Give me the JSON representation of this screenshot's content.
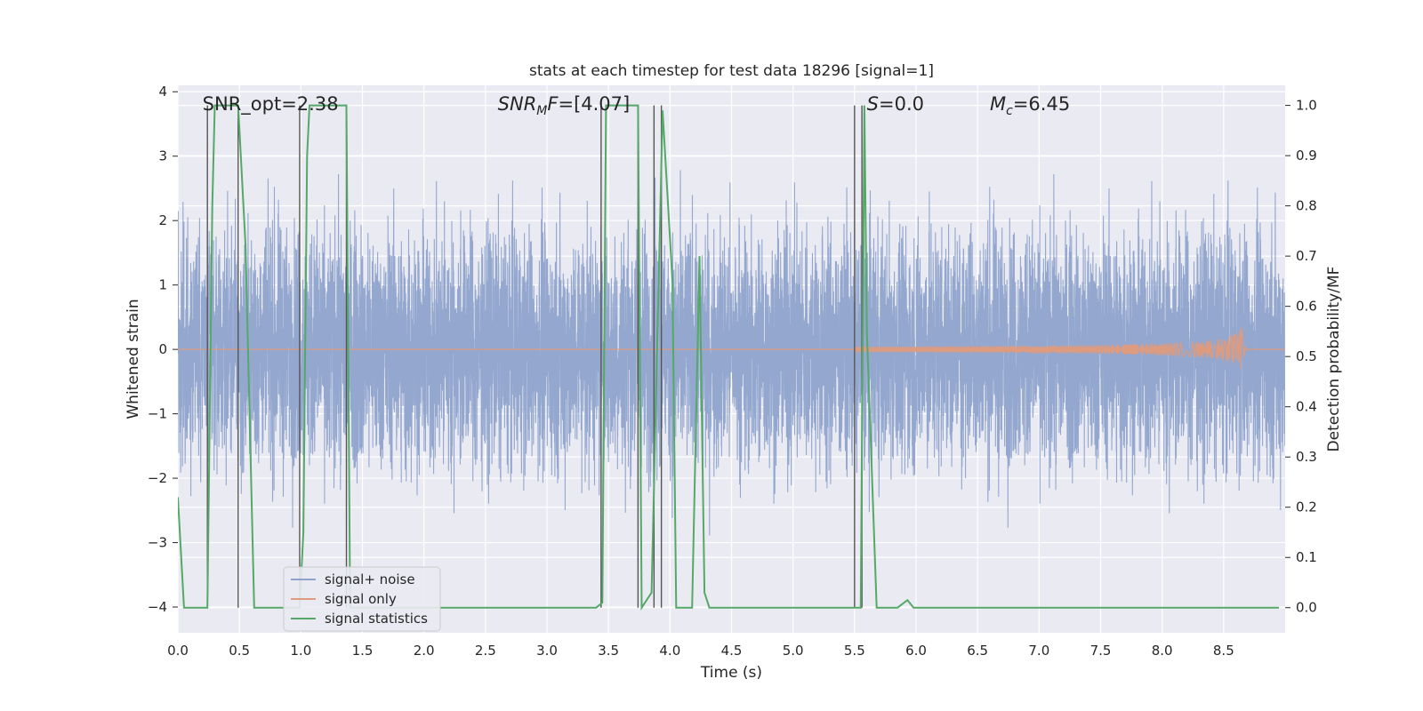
{
  "chart_data": {
    "type": "line",
    "title": "stats at each timestep for test data 18296 [signal=1]",
    "xlabel": "Time (s)",
    "ylabel": "Whitened strain",
    "ylabel_right": "Detection probability/MF",
    "xlim": [
      0.0,
      9.0
    ],
    "ylim": [
      -4.4,
      4.1
    ],
    "ylim_right": [
      -0.05,
      1.04
    ],
    "grid": true,
    "legend_position": "lower-left",
    "xticks": [
      0.0,
      0.5,
      1.0,
      1.5,
      2.0,
      2.5,
      3.0,
      3.5,
      4.0,
      4.5,
      5.0,
      5.5,
      6.0,
      6.5,
      7.0,
      7.5,
      8.0,
      8.5
    ],
    "xtick_labels": [
      "0.0",
      "0.5",
      "1.0",
      "1.5",
      "2.0",
      "2.5",
      "3.0",
      "3.5",
      "4.0",
      "4.5",
      "5.0",
      "5.5",
      "6.0",
      "6.5",
      "7.0",
      "7.5",
      "8.0",
      "8.5"
    ],
    "yticks_left": [
      4,
      3,
      2,
      1,
      0,
      -1,
      -2,
      -3,
      -4
    ],
    "ytick_labels_left": [
      "4",
      "3",
      "2",
      "1",
      "0",
      "−1",
      "−2",
      "−3",
      "−4"
    ],
    "yticks_right": [
      1.0,
      0.9,
      0.8,
      0.7,
      0.6,
      0.5,
      0.4,
      0.3,
      0.2,
      0.1,
      0.0
    ],
    "ytick_labels_right": [
      "1.0",
      "0.9",
      "0.8",
      "0.7",
      "0.6",
      "0.5",
      "0.4",
      "0.3",
      "0.2",
      "0.1",
      "0.0"
    ],
    "annotations": [
      {
        "name": "snr-opt",
        "text": "SNR_opt=2.38",
        "x": 0.2
      },
      {
        "name": "snr-mf",
        "text": "SNR_MF=[4.07]",
        "x": 2.6
      },
      {
        "name": "s-value",
        "text": "S=0.0",
        "x": 5.6
      },
      {
        "name": "chirp-mass",
        "text": "M_c=6.45",
        "x": 6.6
      }
    ],
    "noise": {
      "name": "signal+ noise",
      "color": "#8ea3cc",
      "typical_amplitude": 1.0,
      "peak_amplitude": 3.9,
      "duration_s": 9.0,
      "sample_rate_display": 900
    },
    "signal": {
      "name": "signal only",
      "color": "#dd9b80",
      "merger_time": 8.65,
      "start_time": 5.5,
      "peak_amplitude": 0.35
    },
    "statistics": {
      "name": "signal statistics",
      "color": "#55a868",
      "points": [
        [
          0.0,
          0.22
        ],
        [
          0.05,
          0.0
        ],
        [
          0.24,
          0.0
        ],
        [
          0.28,
          0.8
        ],
        [
          0.3,
          1.0
        ],
        [
          0.49,
          1.0
        ],
        [
          0.55,
          0.72
        ],
        [
          0.62,
          0.0
        ],
        [
          0.99,
          0.0
        ],
        [
          1.02,
          0.15
        ],
        [
          1.05,
          0.9
        ],
        [
          1.07,
          1.0
        ],
        [
          1.37,
          1.0
        ],
        [
          1.4,
          0.0
        ],
        [
          3.4,
          0.0
        ],
        [
          3.45,
          0.01
        ],
        [
          3.48,
          1.0
        ],
        [
          3.74,
          1.0
        ],
        [
          3.77,
          0.0
        ],
        [
          3.85,
          0.03
        ],
        [
          3.94,
          0.99
        ],
        [
          4.02,
          0.65
        ],
        [
          4.05,
          0.0
        ],
        [
          4.18,
          0.0
        ],
        [
          4.24,
          0.7
        ],
        [
          4.28,
          0.03
        ],
        [
          4.32,
          0.0
        ],
        [
          5.55,
          0.0
        ],
        [
          5.58,
          1.0
        ],
        [
          5.6,
          0.55
        ],
        [
          5.68,
          0.0
        ],
        [
          5.85,
          0.0
        ],
        [
          5.93,
          0.015
        ],
        [
          5.98,
          0.0
        ],
        [
          8.95,
          0.0
        ]
      ]
    },
    "vertical_lines": [
      0.24,
      0.49,
      0.99,
      1.37,
      3.44,
      3.74,
      3.87,
      3.93,
      5.5,
      5.56
    ],
    "legend": [
      "signal+ noise",
      "signal only",
      "signal statistics"
    ]
  }
}
